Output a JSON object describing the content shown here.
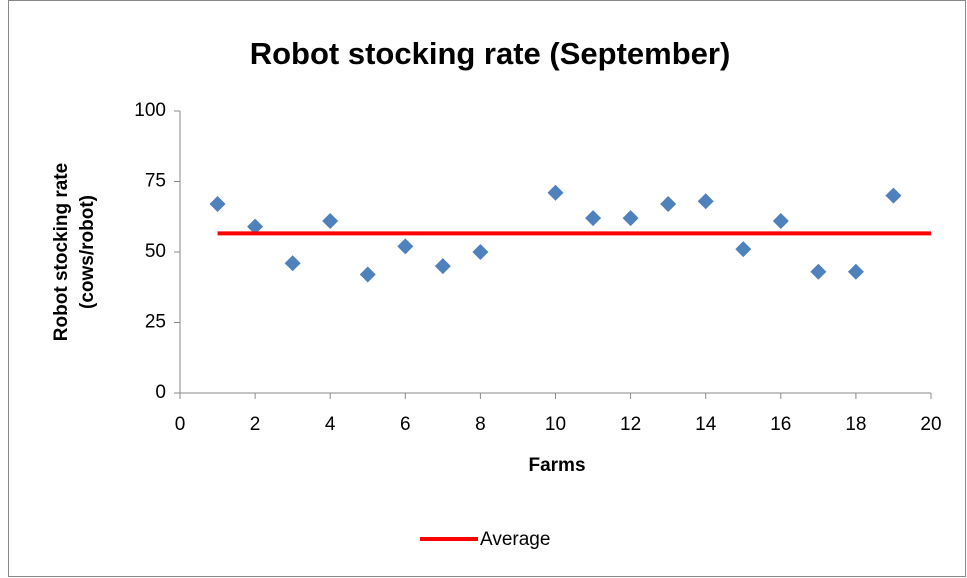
{
  "chart_data": {
    "type": "scatter",
    "title": "Robot stocking rate (September)",
    "xlabel": "Farms",
    "ylabel": [
      "Robot stocking rate",
      "(cows/robot)"
    ],
    "xlim": [
      0,
      20
    ],
    "xticks": [
      0,
      2,
      4,
      6,
      8,
      10,
      12,
      14,
      16,
      18,
      20
    ],
    "ylim": [
      0,
      100
    ],
    "yticks": [
      0,
      25,
      50,
      75,
      100
    ],
    "grid": false,
    "legend": "bottom",
    "series": [
      {
        "color": "#4f81bd",
        "style": "marker",
        "x": [
          1,
          2,
          3,
          4,
          5,
          6,
          7,
          8,
          10,
          11,
          12,
          13,
          14,
          15,
          16,
          17,
          18,
          19
        ],
        "values": [
          67,
          59,
          46,
          61,
          42,
          52,
          45,
          50,
          71,
          62,
          62,
          67,
          68,
          51,
          61,
          43,
          43,
          70
        ]
      },
      {
        "name": "Average",
        "color": "#ff0000",
        "style": "line",
        "x": [
          1,
          20
        ],
        "values": [
          56.6,
          56.6
        ]
      }
    ]
  }
}
